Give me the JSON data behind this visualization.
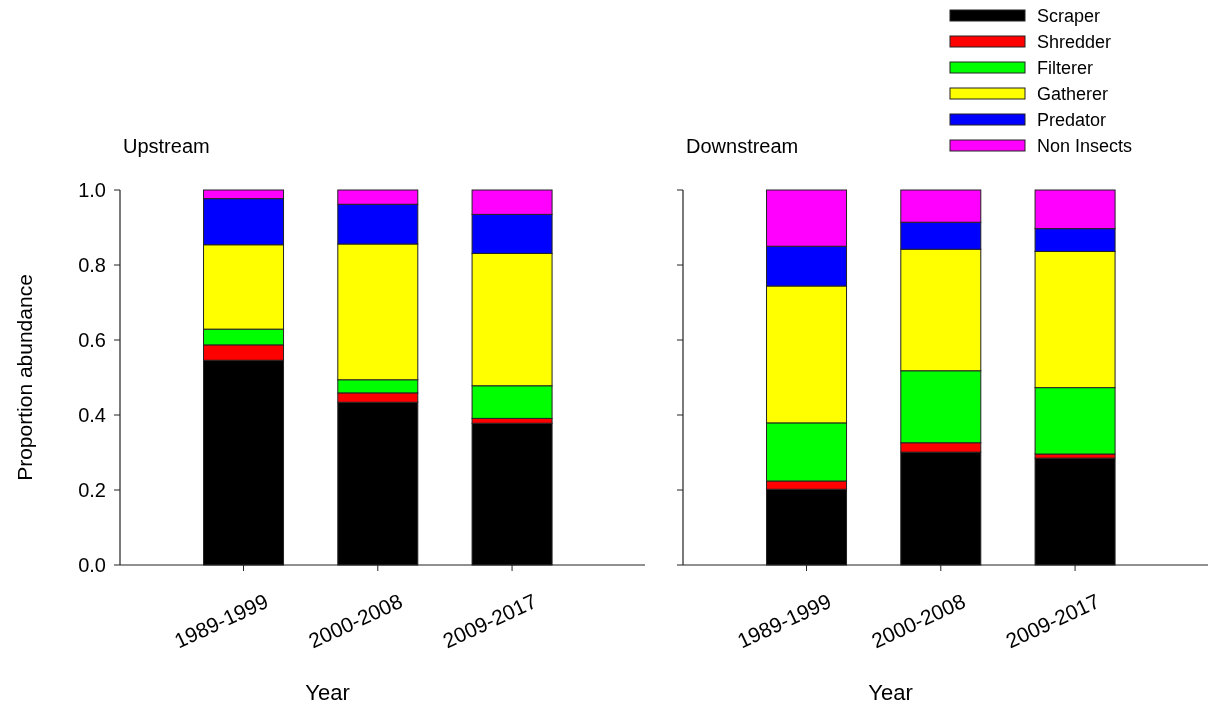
{
  "chart_data": [
    {
      "type": "bar",
      "title": "Upstream",
      "xlabel": "Year",
      "ylabel": "Proportion abundance",
      "categories": [
        "1989-1999",
        "2000-2008",
        "2009-2017"
      ],
      "stacked": true,
      "ylim": [
        0,
        1
      ],
      "yticks": [
        {
          "value": 0,
          "label": "0.0"
        },
        {
          "value": 0.2,
          "label": "0.2"
        },
        {
          "value": 0.4,
          "label": "0.4"
        },
        {
          "value": 0.6,
          "label": "0.6"
        },
        {
          "value": 0.8,
          "label": "0.8"
        },
        {
          "value": 1,
          "label": "1.0"
        }
      ],
      "grid": false,
      "legend": false,
      "series": [
        {
          "color": "#000000",
          "values": [
            0.546,
            0.434,
            0.378
          ]
        },
        {
          "color": "#ff0000",
          "values": [
            0.041,
            0.025,
            0.013
          ]
        },
        {
          "color": "#00ff00",
          "values": [
            0.042,
            0.035,
            0.087
          ]
        },
        {
          "color": "#ffff00",
          "values": [
            0.225,
            0.362,
            0.353
          ]
        },
        {
          "color": "#0000ff",
          "values": [
            0.123,
            0.106,
            0.104
          ]
        },
        {
          "color": "#ff00ff",
          "values": [
            0.023,
            0.038,
            0.065
          ]
        }
      ]
    },
    {
      "type": "bar",
      "title": "Downstream",
      "xlabel": "Year",
      "categories": [
        "1989-1999",
        "2000-2008",
        "2009-2017"
      ],
      "stacked": true,
      "ylim": [
        0,
        1
      ],
      "yticks": [
        {
          "value": 0,
          "label": null
        },
        {
          "value": 0.2,
          "label": null
        },
        {
          "value": 0.4,
          "label": null
        },
        {
          "value": 0.6,
          "label": null
        },
        {
          "value": 0.8,
          "label": null
        },
        {
          "value": 1,
          "label": null
        }
      ],
      "tick_labels": "x",
      "grid": false,
      "legend": "top right",
      "series": [
        {
          "name": "Scraper",
          "color": "#000000",
          "values": [
            0.202,
            0.301,
            0.285
          ]
        },
        {
          "name": "Shredder",
          "color": "#ff0000",
          "values": [
            0.022,
            0.025,
            0.011
          ]
        },
        {
          "name": "Filterer",
          "color": "#00ff00",
          "values": [
            0.155,
            0.192,
            0.177
          ]
        },
        {
          "name": "Gatherer",
          "color": "#ffff00",
          "values": [
            0.365,
            0.324,
            0.363
          ]
        },
        {
          "name": "Predator",
          "color": "#0000ff",
          "values": [
            0.106,
            0.072,
            0.061
          ]
        },
        {
          "name": "Non Insects",
          "color": "#ff00ff",
          "values": [
            0.15,
            0.086,
            0.103
          ]
        }
      ]
    }
  ]
}
